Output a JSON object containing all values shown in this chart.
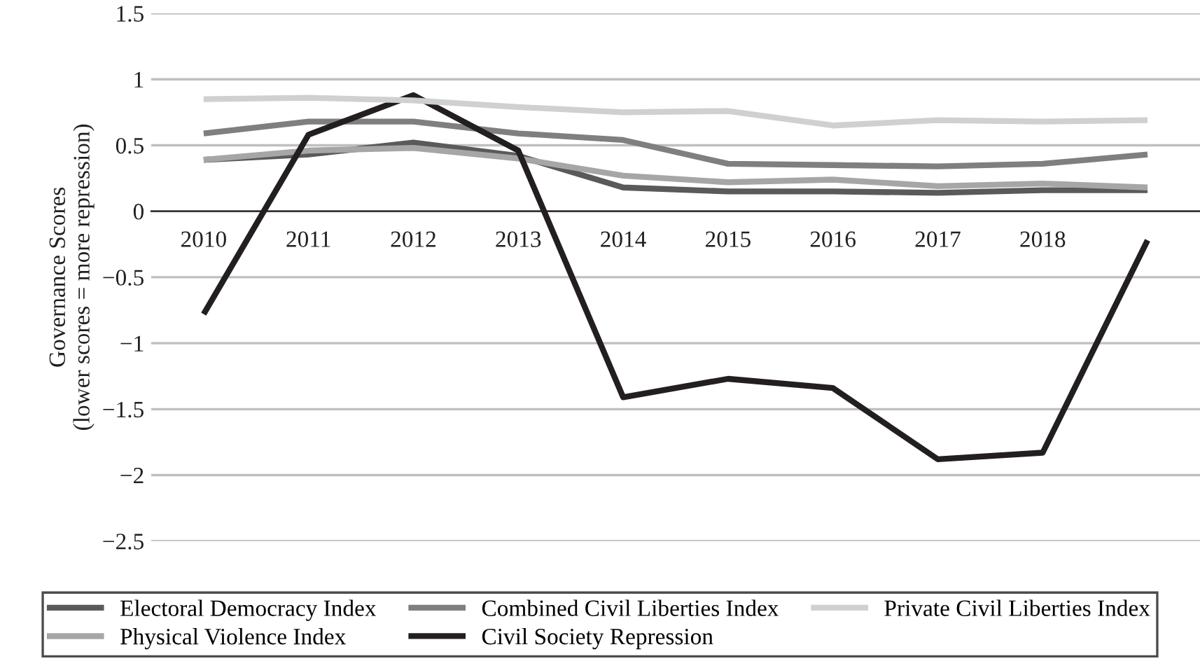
{
  "chart_data": {
    "type": "line",
    "ylabel": "Governance Scores\n(lower scores = more repression)",
    "categories": [
      "2010",
      "2011",
      "2012",
      "2013",
      "2014",
      "2015",
      "2016",
      "2017",
      "2018",
      null
    ],
    "series": [
      {
        "name": "Electoral Democracy Index",
        "color": "#5a5a5a",
        "values": [
          0.39,
          0.43,
          0.52,
          0.42,
          0.18,
          0.15,
          0.15,
          0.14,
          0.16,
          0.16
        ]
      },
      {
        "name": "Physical Violence Index",
        "color": "#a6a6a6",
        "values": [
          0.39,
          0.46,
          0.48,
          0.4,
          0.27,
          0.22,
          0.24,
          0.19,
          0.21,
          0.18
        ]
      },
      {
        "name": "Combined Civil Liberties Index",
        "color": "#7f7f7f",
        "values": [
          0.59,
          0.68,
          0.68,
          0.59,
          0.54,
          0.36,
          0.35,
          0.34,
          0.36,
          0.43
        ]
      },
      {
        "name": "Civil Society Repression",
        "color": "#231f20",
        "values": [
          -0.78,
          0.58,
          0.88,
          0.46,
          -1.41,
          -1.27,
          -1.34,
          -1.88,
          -1.83,
          -0.22
        ]
      },
      {
        "name": "Private Civil Liberties Index",
        "color": "#d0d0d0",
        "values": [
          0.85,
          0.86,
          0.84,
          0.79,
          0.75,
          0.76,
          0.65,
          0.69,
          0.68,
          0.69
        ]
      }
    ],
    "ylim": [
      -2.5,
      1.5
    ],
    "yticks": [
      {
        "value": -2.5,
        "label": "−2.5"
      },
      {
        "value": -2,
        "label": "−2"
      },
      {
        "value": -1.5,
        "label": "−1.5"
      },
      {
        "value": -1,
        "label": "−1"
      },
      {
        "value": -0.5,
        "label": "−0.5"
      },
      0,
      0.5,
      1,
      1.5
    ],
    "grid": "y",
    "legend": "bottom",
    "marker": "none",
    "line_style": "solid"
  }
}
